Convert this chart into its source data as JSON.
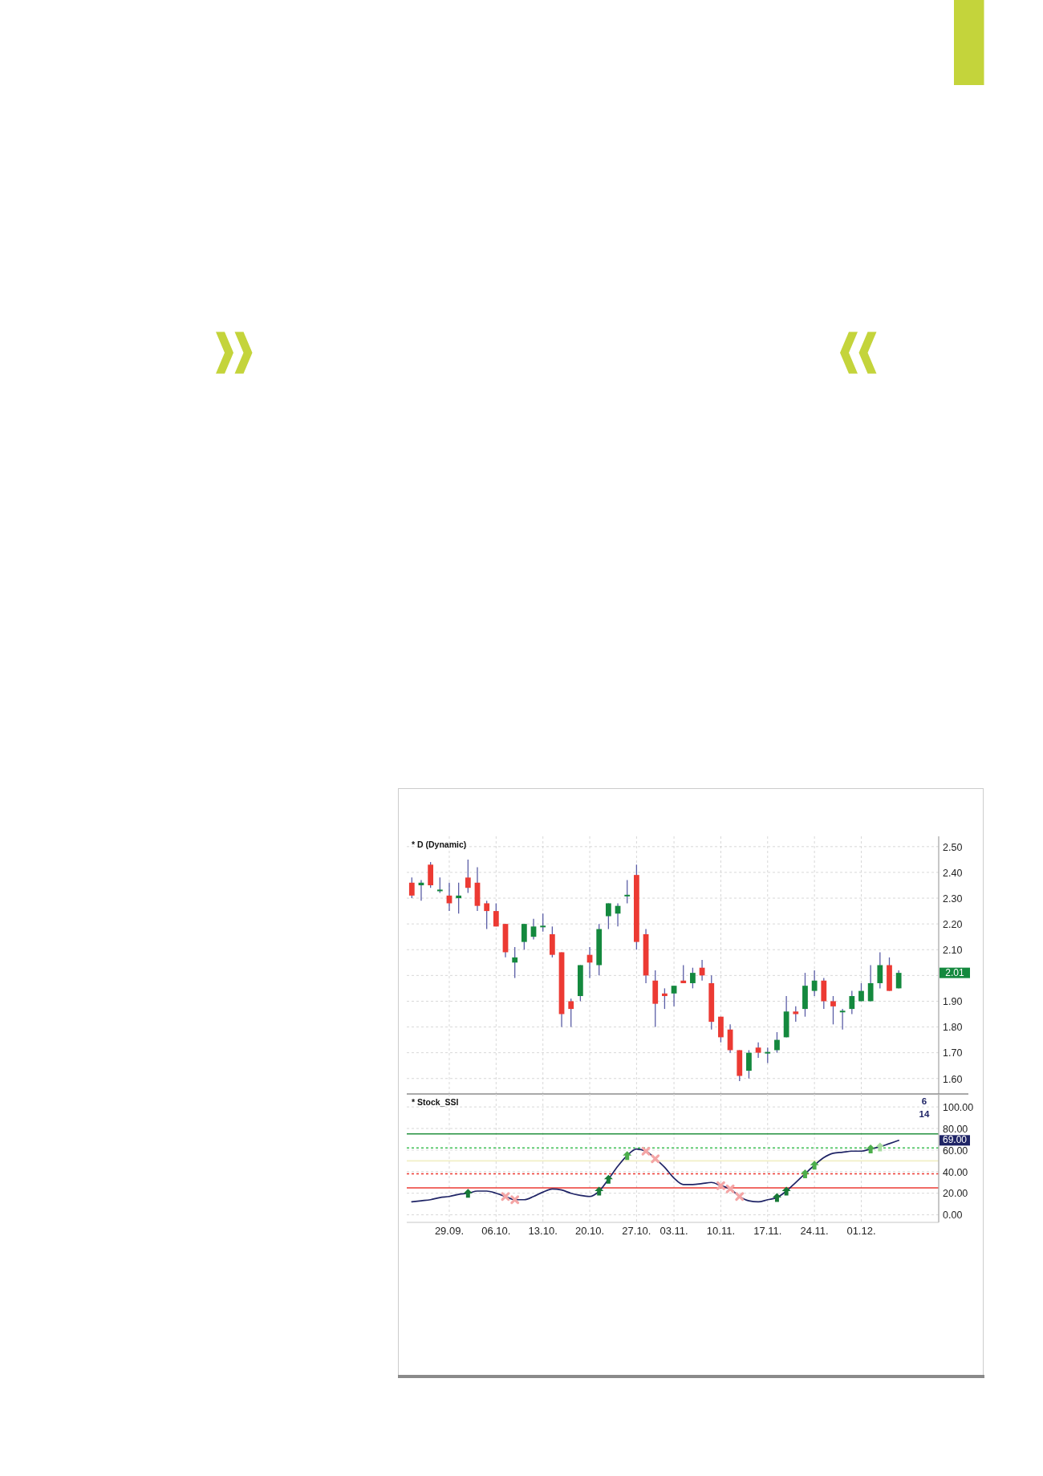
{
  "chart_data": [
    {
      "type": "candlestick",
      "title": "* D (Dynamic)",
      "tick_labels": "y",
      "grid": true,
      "categories": [
        null,
        null,
        null,
        null,
        "29.09.",
        null,
        null,
        null,
        null,
        "06.10.",
        null,
        null,
        null,
        null,
        "13.10.",
        null,
        null,
        null,
        null,
        "20.10.",
        null,
        null,
        null,
        null,
        "27.10.",
        null,
        null,
        null,
        "03.11.",
        null,
        null,
        null,
        null,
        "10.11.",
        null,
        null,
        null,
        null,
        "17.11.",
        null,
        null,
        null,
        null,
        "24.11.",
        null,
        null,
        null,
        null,
        "01.12.",
        null,
        null,
        null,
        null
      ],
      "ohlc": [
        [
          2.36,
          2.38,
          2.3,
          2.31
        ],
        [
          2.35,
          2.37,
          2.29,
          2.36
        ],
        [
          2.43,
          2.44,
          2.34,
          2.35
        ],
        [
          2.33,
          2.38,
          2.32,
          2.33
        ],
        [
          2.31,
          2.36,
          2.25,
          2.28
        ],
        [
          2.3,
          2.36,
          2.24,
          2.31
        ],
        [
          2.38,
          2.45,
          2.32,
          2.34
        ],
        [
          2.36,
          2.42,
          2.25,
          2.27
        ],
        [
          2.28,
          2.29,
          2.18,
          2.25
        ],
        [
          2.25,
          2.28,
          2.19,
          2.19
        ],
        [
          2.2,
          2.2,
          2.07,
          2.09
        ],
        [
          2.05,
          2.11,
          1.99,
          2.07
        ],
        [
          2.13,
          2.2,
          2.1,
          2.2
        ],
        [
          2.15,
          2.22,
          2.14,
          2.19
        ],
        [
          2.19,
          2.24,
          2.17,
          2.19
        ],
        [
          2.16,
          2.19,
          2.07,
          2.08
        ],
        [
          2.09,
          2.09,
          1.8,
          1.85
        ],
        [
          1.9,
          1.91,
          1.8,
          1.87
        ],
        [
          1.92,
          2.04,
          1.9,
          2.04
        ],
        [
          2.08,
          2.11,
          1.99,
          2.05
        ],
        [
          2.04,
          2.2,
          2.0,
          2.18
        ],
        [
          2.23,
          2.28,
          2.18,
          2.28
        ],
        [
          2.24,
          2.28,
          2.19,
          2.27
        ],
        [
          2.31,
          2.37,
          2.28,
          2.31
        ],
        [
          2.39,
          2.43,
          2.1,
          2.13
        ],
        [
          2.16,
          2.18,
          1.97,
          2.0
        ],
        [
          1.98,
          2.02,
          1.8,
          1.89
        ],
        [
          1.93,
          1.95,
          1.87,
          1.92
        ],
        [
          1.93,
          1.96,
          1.88,
          1.96
        ],
        [
          1.98,
          2.04,
          1.97,
          1.97
        ],
        [
          1.97,
          2.03,
          1.95,
          2.01
        ],
        [
          2.03,
          2.06,
          1.98,
          2.0
        ],
        [
          1.97,
          2.0,
          1.79,
          1.82
        ],
        [
          1.84,
          1.84,
          1.74,
          1.76
        ],
        [
          1.79,
          1.81,
          1.7,
          1.71
        ],
        [
          1.71,
          1.71,
          1.59,
          1.61
        ],
        [
          1.63,
          1.71,
          1.6,
          1.7
        ],
        [
          1.72,
          1.74,
          1.68,
          1.7
        ],
        [
          1.7,
          1.72,
          1.66,
          1.7
        ],
        [
          1.71,
          1.78,
          1.7,
          1.75
        ],
        [
          1.76,
          1.92,
          1.76,
          1.86
        ],
        [
          1.86,
          1.88,
          1.82,
          1.85
        ],
        [
          1.87,
          2.01,
          1.84,
          1.96
        ],
        [
          1.94,
          2.02,
          1.92,
          1.98
        ],
        [
          1.98,
          1.99,
          1.87,
          1.9
        ],
        [
          1.9,
          1.92,
          1.81,
          1.88
        ],
        [
          1.86,
          1.87,
          1.79,
          1.86
        ],
        [
          1.87,
          1.94,
          1.85,
          1.92
        ],
        [
          1.9,
          1.97,
          1.9,
          1.94
        ],
        [
          1.9,
          2.04,
          1.9,
          1.97
        ],
        [
          1.97,
          2.09,
          1.95,
          2.04
        ],
        [
          2.04,
          2.07,
          1.94,
          1.94
        ],
        [
          1.95,
          2.02,
          1.95,
          2.01
        ]
      ],
      "colors": [
        "#ec3a33",
        "#14893e",
        "#ec3a33",
        "#14893e",
        "#ec3a33",
        "#14893e",
        "#ec3a33",
        "#ec3a33",
        "#ec3a33",
        "#ec3a33",
        "#ec3a33",
        "#14893e",
        "#14893e",
        "#14893e",
        "#14893e",
        "#ec3a33",
        "#ec3a33",
        "#ec3a33",
        "#14893e",
        "#ec3a33",
        "#14893e",
        "#14893e",
        "#14893e",
        "#14893e",
        "#ec3a33",
        "#ec3a33",
        "#ec3a33",
        "#ec3a33",
        "#14893e",
        "#ec3a33",
        "#14893e",
        "#ec3a33",
        "#ec3a33",
        "#ec3a33",
        "#ec3a33",
        "#ec3a33",
        "#14893e",
        "#ec3a33",
        "#14893e",
        "#14893e",
        "#14893e",
        "#ec3a33",
        "#14893e",
        "#14893e",
        "#ec3a33",
        "#ec3a33",
        "#14893e",
        "#14893e",
        "#14893e",
        "#14893e",
        "#14893e",
        "#ec3a33",
        "#14893e"
      ],
      "ylim": [
        1.54,
        2.54
      ],
      "yticks": [
        {
          "value": 1.6,
          "label": "1.60"
        },
        {
          "value": 1.7,
          "label": "1.70"
        },
        {
          "value": 1.8,
          "label": "1.80"
        },
        {
          "value": 1.9,
          "label": "1.90"
        },
        {
          "value": 2.0,
          "label": null
        },
        {
          "value": 2.1,
          "label": "2.10"
        },
        {
          "value": 2.2,
          "label": "2.20"
        },
        {
          "value": 2.3,
          "label": "2.30"
        },
        {
          "value": 2.4,
          "label": "2.40"
        },
        {
          "value": 2.5,
          "label": "2.50"
        }
      ],
      "annotations": [
        "2.01"
      ]
    },
    {
      "type": "line",
      "title": "* Stock_SSI",
      "grid": true,
      "categories": [
        null,
        null,
        null,
        null,
        "29.09.",
        null,
        null,
        null,
        null,
        "06.10.",
        null,
        null,
        null,
        null,
        "13.10.",
        null,
        null,
        null,
        null,
        "20.10.",
        null,
        null,
        null,
        null,
        "27.10.",
        null,
        null,
        null,
        "03.11.",
        null,
        null,
        null,
        null,
        "10.11.",
        null,
        null,
        null,
        null,
        "17.11.",
        null,
        null,
        null,
        null,
        "24.11.",
        null,
        null,
        null,
        null,
        "01.12.",
        null,
        null,
        null,
        null
      ],
      "series": [
        {
          "type": "line",
          "color": "#1f2466",
          "values": [
            12,
            13,
            14,
            16,
            17,
            19,
            20,
            22,
            22,
            20,
            17,
            14,
            14,
            17,
            21,
            24,
            23,
            20,
            18,
            17,
            22,
            33,
            45,
            55,
            61,
            59,
            52,
            44,
            34,
            28,
            28,
            29,
            30,
            27,
            24,
            17,
            13,
            12,
            14,
            16,
            22,
            30,
            38,
            46,
            53,
            57,
            58,
            59,
            59,
            61,
            63,
            66,
            69
          ]
        },
        {
          "type": "scatter",
          "marker": "triangle",
          "color": "#177a36",
          "values": [
            null,
            null,
            null,
            null,
            null,
            null,
            20,
            null,
            null,
            null,
            null,
            null,
            null,
            null,
            null,
            null,
            null,
            null,
            null,
            null,
            22,
            33,
            null,
            null,
            null,
            null,
            null,
            null,
            null,
            null,
            null,
            null,
            null,
            null,
            null,
            null,
            null,
            null,
            null,
            16,
            22,
            null,
            null,
            null,
            null,
            null,
            null,
            null,
            null,
            null,
            null,
            null,
            null
          ]
        },
        {
          "type": "scatter",
          "marker": "triangle",
          "color": "#4cae4c",
          "values": [
            null,
            null,
            null,
            null,
            null,
            null,
            null,
            null,
            null,
            null,
            null,
            null,
            null,
            null,
            null,
            null,
            null,
            null,
            null,
            null,
            null,
            null,
            null,
            55,
            null,
            null,
            null,
            null,
            null,
            null,
            null,
            null,
            null,
            null,
            null,
            null,
            null,
            null,
            null,
            null,
            null,
            null,
            38,
            46,
            null,
            null,
            null,
            null,
            null,
            61,
            null,
            null,
            null
          ]
        },
        {
          "type": "scatter",
          "marker": "triangle",
          "color": "#a6dba0",
          "values": [
            null,
            null,
            null,
            null,
            null,
            null,
            null,
            null,
            null,
            null,
            null,
            null,
            null,
            null,
            null,
            null,
            null,
            null,
            null,
            null,
            null,
            null,
            null,
            null,
            null,
            null,
            null,
            null,
            null,
            null,
            null,
            null,
            null,
            null,
            null,
            null,
            null,
            null,
            null,
            null,
            null,
            null,
            null,
            null,
            null,
            null,
            null,
            null,
            null,
            null,
            63,
            null,
            null
          ]
        },
        {
          "type": "scatter",
          "marker": "cross",
          "color": "#f4a5a5",
          "values": [
            null,
            null,
            null,
            null,
            null,
            null,
            null,
            null,
            null,
            null,
            17,
            14,
            null,
            null,
            null,
            null,
            null,
            null,
            null,
            null,
            null,
            null,
            null,
            null,
            null,
            59,
            52,
            null,
            null,
            null,
            null,
            null,
            null,
            27,
            24,
            17,
            null,
            null,
            null,
            null,
            null,
            null,
            null,
            null,
            null,
            null,
            null,
            null,
            null,
            null,
            null,
            null,
            null
          ]
        }
      ],
      "ref_lines": [
        {
          "axis": "y",
          "value": 75,
          "color": "#24913f",
          "line_style": "solid"
        },
        {
          "axis": "y",
          "value": 62,
          "color": "#3fbf55",
          "line_style": "dotted"
        },
        {
          "axis": "y",
          "value": 50,
          "color": "#f1efc6",
          "line_style": "solid"
        },
        {
          "axis": "y",
          "value": 38,
          "color": "#ec3a33",
          "line_style": "dotted"
        },
        {
          "axis": "y",
          "value": 25,
          "color": "#ec3a33",
          "line_style": "solid"
        }
      ],
      "ylim": [
        -7,
        112
      ],
      "yticks": [
        {
          "value": 0,
          "label": "0.00"
        },
        {
          "value": 20,
          "label": "20.00"
        },
        {
          "value": 40,
          "label": "40.00"
        },
        {
          "value": 60,
          "label": "60.00"
        },
        {
          "value": 80,
          "label": "80.00"
        },
        {
          "value": 100,
          "label": "100.00"
        }
      ],
      "annotations": [
        "6",
        "14",
        "69.00"
      ]
    }
  ]
}
